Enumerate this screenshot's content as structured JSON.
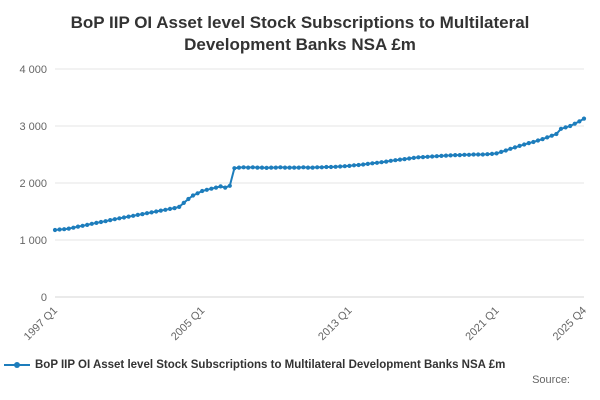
{
  "title": "BoP IIP OI Asset level Stock Subscriptions to Multilateral Development Banks NSA £m",
  "legend": {
    "marker": "line-with-dot",
    "label": "BoP IIP OI Asset level Stock Subscriptions to Multilateral Development Banks NSA £m"
  },
  "footer": {
    "source_label": "Source:"
  },
  "colors": {
    "line": "#1d7dbc",
    "grid": "#e6e6e6",
    "zero_line": "#d6d6d6",
    "tick_text": "#666666",
    "title_text": "#333333",
    "legend_text": "#333333"
  },
  "chart_data": {
    "type": "line",
    "title": "BoP IIP OI Asset level Stock Subscriptions to Multilateral Development Banks NSA £m",
    "xlabel": "",
    "ylabel": "",
    "ylim": [
      0,
      4000
    ],
    "grid": true,
    "legend_position": "bottom",
    "frequency": "quarterly",
    "x_start": "1997 Q1",
    "x_end": "2025 Q4",
    "yticks": [
      {
        "value": 0,
        "label": "0"
      },
      {
        "value": 1000,
        "label": "1 000"
      },
      {
        "value": 2000,
        "label": "2 000"
      },
      {
        "value": 3000,
        "label": "3 000"
      },
      {
        "value": 4000,
        "label": "4 000"
      }
    ],
    "xticks": [
      {
        "index": 0,
        "label": "1997 Q1"
      },
      {
        "index": 32,
        "label": "2005 Q1"
      },
      {
        "index": 64,
        "label": "2013 Q1"
      },
      {
        "index": 96,
        "label": "2021 Q1"
      },
      {
        "index": 115,
        "label": "2025 Q4"
      }
    ],
    "values": [
      1175,
      1185,
      1190,
      1200,
      1215,
      1235,
      1250,
      1265,
      1285,
      1300,
      1315,
      1330,
      1350,
      1365,
      1380,
      1395,
      1410,
      1425,
      1440,
      1455,
      1470,
      1485,
      1500,
      1515,
      1530,
      1545,
      1560,
      1580,
      1650,
      1720,
      1780,
      1820,
      1860,
      1880,
      1900,
      1920,
      1940,
      1920,
      1950,
      2260,
      2270,
      2275,
      2270,
      2275,
      2270,
      2270,
      2265,
      2270,
      2270,
      2275,
      2270,
      2270,
      2270,
      2270,
      2275,
      2270,
      2270,
      2275,
      2275,
      2280,
      2280,
      2285,
      2290,
      2295,
      2300,
      2310,
      2315,
      2325,
      2335,
      2345,
      2355,
      2365,
      2375,
      2390,
      2400,
      2410,
      2420,
      2430,
      2440,
      2450,
      2455,
      2460,
      2465,
      2470,
      2475,
      2480,
      2485,
      2490,
      2490,
      2495,
      2495,
      2500,
      2500,
      2500,
      2505,
      2510,
      2520,
      2545,
      2570,
      2600,
      2625,
      2650,
      2675,
      2700,
      2720,
      2745,
      2770,
      2800,
      2830,
      2860,
      2950,
      2975,
      3000,
      3040,
      3080,
      3130
    ]
  }
}
